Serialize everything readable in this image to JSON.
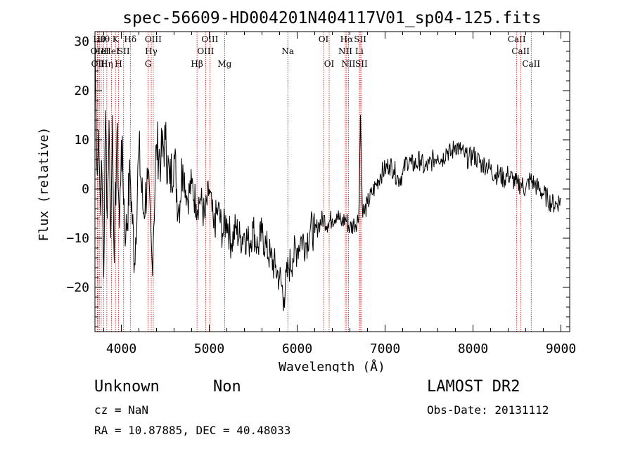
{
  "chart_data": {
    "type": "line",
    "title": "spec-56609-HD004201N404117V01_sp04-125.fits",
    "xlabel": "Wavelength (Å)",
    "ylabel": "Flux (relative)",
    "xlim": [
      3700,
      9100
    ],
    "ylim": [
      -29,
      32
    ],
    "x_ticks": [
      4000,
      5000,
      6000,
      7000,
      8000,
      9000
    ],
    "y_ticks": [
      -20,
      -10,
      0,
      10,
      20,
      30
    ],
    "x_tick_labels": [
      "4000",
      "5000",
      "6000",
      "7000",
      "8000",
      "9000"
    ],
    "y_tick_labels": [
      "−20",
      "−10",
      "0",
      "10",
      "20",
      "30"
    ],
    "grid": false,
    "line_color": "#000000",
    "marker_color": "#cc0000",
    "series": [
      {
        "x": [
          3700,
          3720,
          3740,
          3760,
          3780,
          3800,
          3820,
          3840,
          3860,
          3880,
          3900,
          3920,
          3950,
          3980,
          4000,
          4050,
          4100,
          4150,
          4200,
          4250,
          4300,
          4350,
          4400,
          4450,
          4500,
          4550,
          4600,
          4650,
          4700,
          4750,
          4800,
          4850,
          4900,
          4950,
          5000,
          5050,
          5100,
          5150,
          5200,
          5250,
          5300,
          5350,
          5400,
          5450,
          5500,
          5550,
          5600,
          5650,
          5700,
          5750,
          5800,
          5850,
          5900,
          5950,
          6000,
          6050,
          6100,
          6150,
          6200,
          6250,
          6300,
          6350,
          6400,
          6450,
          6500,
          6550,
          6600,
          6650,
          6700,
          6720,
          6740,
          6760,
          6800,
          6850,
          6900,
          6950,
          7000,
          7050,
          7100,
          7150,
          7200,
          7250,
          7300,
          7350,
          7400,
          7450,
          7500,
          7550,
          7600,
          7650,
          7700,
          7750,
          7800,
          7850,
          7900,
          7950,
          8000,
          8050,
          8100,
          8150,
          8200,
          8250,
          8300,
          8350,
          8400,
          8450,
          8500,
          8550,
          8600,
          8650,
          8700,
          8750,
          8800,
          8850,
          8900,
          8950,
          9000
        ],
        "y": [
          31,
          5,
          12,
          -2,
          3,
          -18,
          16,
          -6,
          14,
          -10,
          15,
          -15,
          12,
          -8,
          10,
          -10,
          3,
          -15,
          8,
          -5,
          2,
          -15,
          9,
          6,
          10,
          1,
          7,
          -4,
          5,
          -2,
          1,
          -3,
          -2,
          -6,
          0,
          -8,
          -4,
          -9,
          -6,
          -11,
          -8,
          -10,
          -9,
          -11,
          -8,
          -12,
          -9,
          -12,
          -14,
          -16,
          -18,
          -22,
          -16,
          -14,
          -12,
          -10,
          -11,
          -8,
          -9,
          -7,
          -6,
          -7,
          -6,
          -5,
          -7,
          -6,
          -8,
          -7,
          -6,
          15,
          -3,
          -5,
          -3,
          -1,
          1,
          3,
          4,
          5,
          4,
          2,
          3,
          6,
          5,
          5,
          6,
          4,
          5,
          6,
          7,
          6,
          8,
          7,
          9,
          8,
          7,
          6,
          7,
          6,
          5,
          5,
          4,
          3,
          3,
          2,
          3,
          2,
          1,
          1,
          0,
          2,
          1,
          0,
          -1,
          -2,
          -3,
          -3,
          -2
        ]
      }
    ],
    "line_markers": [
      {
        "x": 3727,
        "label": "OII",
        "row": 1
      },
      {
        "x": 3734,
        "label": "OII",
        "row": 2
      },
      {
        "x": 3750,
        "label": "Hθ",
        "row": 0
      },
      {
        "x": 3771,
        "label": "HeI",
        "row": 1
      },
      {
        "x": 3798,
        "label": "Hθ",
        "row": 0
      },
      {
        "x": 3835,
        "label": "Hη",
        "row": 2
      },
      {
        "x": 3889,
        "label": "HeI",
        "row": 1
      },
      {
        "x": 3934,
        "label": "K",
        "row": 0
      },
      {
        "x": 3969,
        "label": "H",
        "row": 2
      },
      {
        "x": 4026,
        "label": "SII",
        "row": 1
      },
      {
        "x": 4102,
        "label": "Hδ",
        "row": 0
      },
      {
        "x": 4304,
        "label": "G",
        "row": 2
      },
      {
        "x": 4340,
        "label": "Hγ",
        "row": 1
      },
      {
        "x": 4363,
        "label": "OIII",
        "row": 0
      },
      {
        "x": 4861,
        "label": "Hβ",
        "row": 2
      },
      {
        "x": 4959,
        "label": "OIII",
        "row": 1
      },
      {
        "x": 5007,
        "label": "OIII",
        "row": 0
      },
      {
        "x": 5175,
        "label": "Mg",
        "row": 2
      },
      {
        "x": 5894,
        "label": "Na",
        "row": 1
      },
      {
        "x": 6300,
        "label": "OI",
        "row": 0
      },
      {
        "x": 6364,
        "label": "OI",
        "row": 2
      },
      {
        "x": 6548,
        "label": "NII",
        "row": 1
      },
      {
        "x": 6563,
        "label": "Hα",
        "row": 0
      },
      {
        "x": 6583,
        "label": "NII",
        "row": 2
      },
      {
        "x": 6707,
        "label": "Li",
        "row": 1
      },
      {
        "x": 6717,
        "label": "SII",
        "row": 0
      },
      {
        "x": 6731,
        "label": "SII",
        "row": 2
      },
      {
        "x": 8498,
        "label": "CaII",
        "row": 0
      },
      {
        "x": 8542,
        "label": "CaII",
        "row": 1
      },
      {
        "x": 8662,
        "label": "CaII",
        "row": 2
      }
    ]
  },
  "footer": {
    "object_class": "Unknown",
    "subclass": "Non",
    "survey": "LAMOST DR2",
    "redshift": "cz = NaN",
    "obs_date": "Obs-Date: 20131112",
    "coords": "RA =  10.87885, DEC =  40.48033"
  }
}
